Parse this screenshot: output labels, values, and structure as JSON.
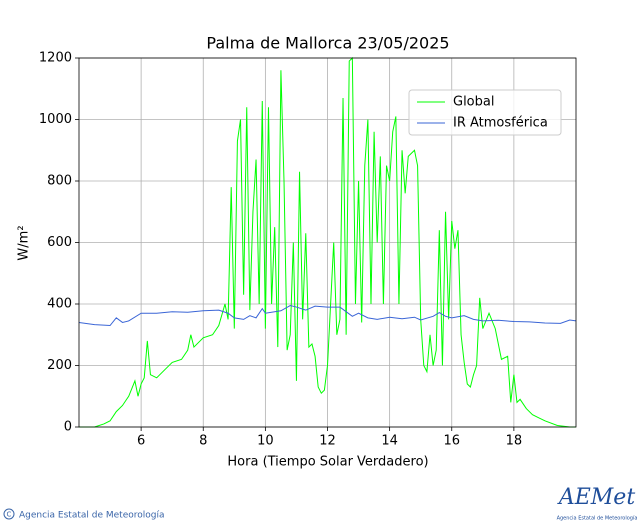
{
  "chart_data": {
    "type": "line",
    "title": "Palma de Mallorca 23/05/2025",
    "xlabel": "Hora (Tiempo Solar Verdadero)",
    "ylabel": "W/m²",
    "xlim": [
      4,
      20
    ],
    "ylim": [
      0,
      1200
    ],
    "xticks": [
      6,
      8,
      10,
      12,
      14,
      16,
      18
    ],
    "yticks": [
      0,
      200,
      400,
      600,
      800,
      1000,
      1200
    ],
    "grid": true,
    "legend": "upper right",
    "series": [
      {
        "name": "Global",
        "color": "#00ff00",
        "x": [
          4.0,
          4.5,
          4.8,
          5.0,
          5.2,
          5.4,
          5.6,
          5.8,
          5.9,
          6.0,
          6.1,
          6.2,
          6.3,
          6.5,
          6.8,
          7.0,
          7.3,
          7.5,
          7.6,
          7.7,
          8.0,
          8.3,
          8.5,
          8.7,
          8.8,
          8.9,
          9.0,
          9.1,
          9.2,
          9.3,
          9.4,
          9.5,
          9.6,
          9.7,
          9.8,
          9.9,
          10.0,
          10.1,
          10.2,
          10.3,
          10.4,
          10.5,
          10.6,
          10.7,
          10.8,
          10.9,
          11.0,
          11.1,
          11.2,
          11.3,
          11.4,
          11.5,
          11.6,
          11.7,
          11.8,
          11.9,
          12.0,
          12.1,
          12.2,
          12.3,
          12.4,
          12.5,
          12.6,
          12.7,
          12.8,
          12.9,
          13.0,
          13.1,
          13.2,
          13.3,
          13.4,
          13.5,
          13.6,
          13.7,
          13.8,
          13.9,
          14.0,
          14.1,
          14.2,
          14.3,
          14.4,
          14.5,
          14.6,
          14.8,
          14.9,
          15.0,
          15.1,
          15.2,
          15.3,
          15.4,
          15.5,
          15.6,
          15.7,
          15.8,
          15.9,
          16.0,
          16.1,
          16.2,
          16.3,
          16.4,
          16.5,
          16.6,
          16.7,
          16.8,
          16.9,
          17.0,
          17.2,
          17.4,
          17.6,
          17.8,
          17.9,
          18.0,
          18.1,
          18.2,
          18.4,
          18.6,
          18.8,
          19.0,
          19.4,
          19.8,
          20.0
        ],
        "values": [
          0,
          0,
          10,
          20,
          50,
          70,
          100,
          150,
          100,
          140,
          160,
          280,
          170,
          160,
          190,
          210,
          220,
          250,
          300,
          260,
          290,
          300,
          330,
          400,
          350,
          780,
          320,
          930,
          1000,
          430,
          1040,
          380,
          700,
          870,
          400,
          1060,
          320,
          1040,
          400,
          650,
          260,
          1160,
          800,
          250,
          300,
          600,
          150,
          830,
          350,
          630,
          260,
          270,
          230,
          130,
          110,
          120,
          200,
          400,
          600,
          300,
          350,
          1070,
          300,
          1190,
          1200,
          400,
          800,
          340,
          850,
          1000,
          400,
          960,
          600,
          880,
          400,
          850,
          800,
          960,
          1010,
          400,
          900,
          760,
          880,
          900,
          850,
          350,
          200,
          180,
          300,
          200,
          250,
          640,
          200,
          700,
          350,
          670,
          580,
          640,
          300,
          210,
          140,
          130,
          170,
          200,
          420,
          320,
          370,
          320,
          220,
          230,
          80,
          170,
          80,
          90,
          60,
          40,
          30,
          20,
          5,
          0,
          0
        ]
      },
      {
        "name": "IR Atmosférica",
        "color": "#3a65d6",
        "x": [
          4.0,
          4.5,
          5.0,
          5.2,
          5.4,
          5.6,
          6.0,
          6.5,
          7.0,
          7.5,
          8.0,
          8.5,
          8.8,
          9.0,
          9.3,
          9.5,
          9.7,
          9.9,
          10.0,
          10.5,
          10.8,
          11.0,
          11.3,
          11.6,
          12.0,
          12.4,
          12.6,
          12.8,
          13.0,
          13.3,
          13.6,
          14.0,
          14.4,
          14.8,
          15.0,
          15.4,
          15.6,
          15.8,
          16.0,
          16.4,
          16.7,
          17.0,
          17.5,
          18.0,
          18.5,
          19.0,
          19.5,
          19.8,
          20.0
        ],
        "values": [
          340,
          333,
          330,
          355,
          340,
          345,
          370,
          370,
          375,
          373,
          378,
          380,
          370,
          355,
          350,
          362,
          355,
          385,
          370,
          378,
          395,
          390,
          380,
          393,
          390,
          390,
          375,
          360,
          370,
          355,
          350,
          357,
          352,
          357,
          348,
          360,
          372,
          360,
          355,
          362,
          350,
          345,
          347,
          343,
          342,
          338,
          337,
          348,
          345
        ]
      }
    ]
  },
  "footer": {
    "copyright_symbol": "C",
    "credit": "Agencia Estatal de Meteorología",
    "logo": "AEMet",
    "logo_sub": "Agencia Estatal de Meteorología"
  }
}
